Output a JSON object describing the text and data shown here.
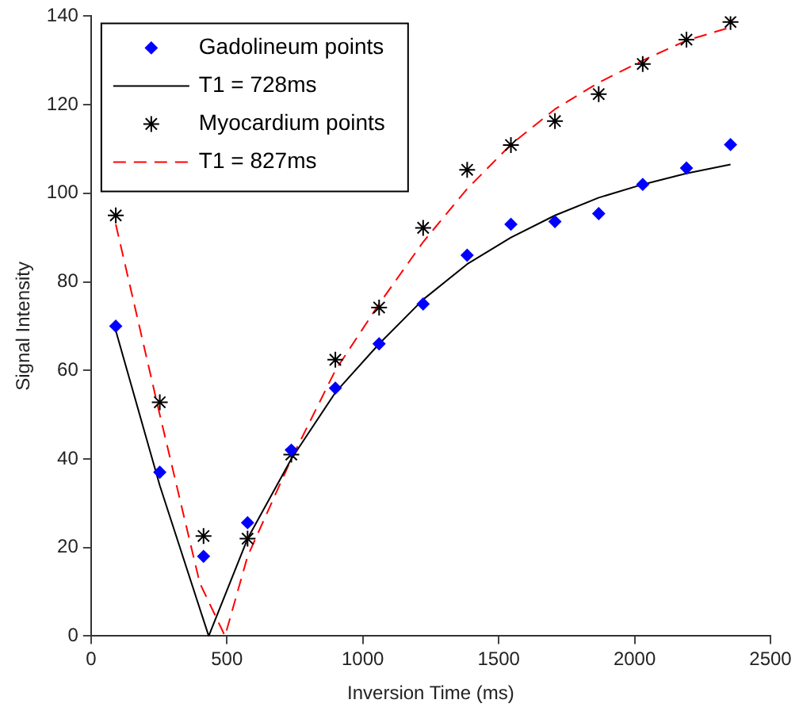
{
  "chart_data": {
    "type": "scatter",
    "xlabel": "Inversion Time (ms)",
    "ylabel": "Signal Intensity",
    "xlim": [
      0,
      2500
    ],
    "xticks": [
      0,
      500,
      1000,
      1500,
      2000,
      2500
    ],
    "ylim": [
      0,
      140
    ],
    "yticks": [
      0,
      20,
      40,
      60,
      80,
      100,
      120,
      140
    ],
    "grid": false,
    "legend": "top left",
    "series": [
      {
        "name": "Gadolineum points",
        "type": "scatter",
        "marker": "diamond",
        "color": "#0000ff",
        "x": [
          91,
          253,
          414,
          576,
          737,
          899,
          1060,
          1222,
          1384,
          1545,
          1707,
          1868,
          2030,
          2191,
          2353
        ],
        "values": [
          70,
          37,
          18,
          25.6,
          42,
          56,
          66,
          75,
          86,
          93,
          93.6,
          95.4,
          102,
          105.7,
          111
        ]
      },
      {
        "name": "T1 = 728ms",
        "type": "line",
        "line_style": "solid",
        "marker": "none",
        "color": "#000000",
        "x": [
          91,
          253,
          433,
          576,
          737,
          899,
          1060,
          1222,
          1384,
          1545,
          1707,
          1868,
          2030,
          2191,
          2353
        ],
        "values": [
          69,
          34,
          0,
          22,
          40,
          55,
          66,
          76,
          84,
          90,
          95,
          99,
          102,
          104.5,
          106.5
        ]
      },
      {
        "name": "Myocardium points",
        "type": "scatter",
        "marker": "cross",
        "color": "#000000",
        "x": [
          91,
          253,
          414,
          576,
          737,
          899,
          1060,
          1222,
          1384,
          1545,
          1707,
          1868,
          2030,
          2191,
          2353
        ],
        "values": [
          95,
          52.8,
          22.6,
          22,
          41,
          62.4,
          74.2,
          92.2,
          105.3,
          110.9,
          116.3,
          122.4,
          129.2,
          134.7,
          138.7
        ]
      },
      {
        "name": "T1 = 827ms",
        "type": "line",
        "line_style": "dashed",
        "marker": "none",
        "color": "#ff0000",
        "x": [
          91,
          253,
          400,
          493,
          576,
          737,
          899,
          1060,
          1222,
          1384,
          1545,
          1707,
          1868,
          2030,
          2191,
          2353
        ],
        "values": [
          93,
          50,
          12,
          0,
          18,
          40,
          60,
          75,
          89,
          101,
          111,
          119,
          125,
          130,
          134.5,
          137.5
        ]
      }
    ]
  }
}
